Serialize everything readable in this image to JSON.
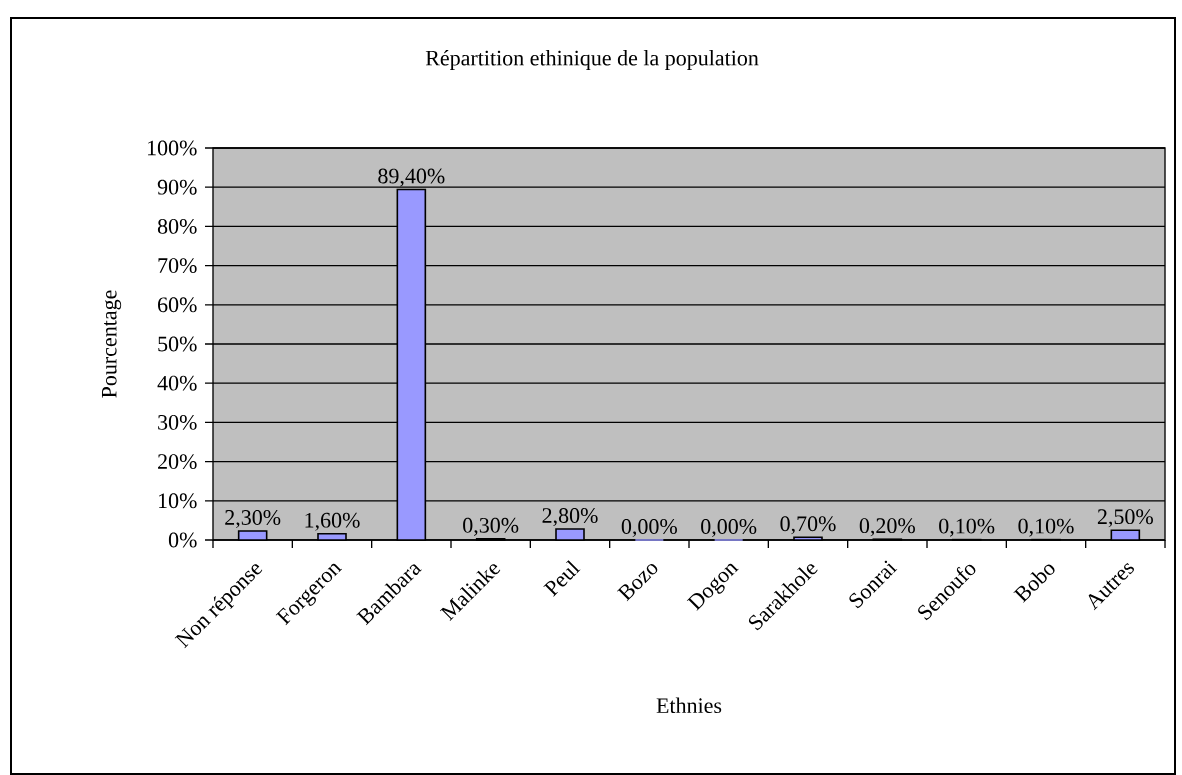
{
  "chart_data": {
    "type": "bar",
    "title": "Répartition ethinique de la population",
    "xlabel": "Ethnies",
    "ylabel": "Pourcentage",
    "categories": [
      "Non réponse",
      "Forgeron",
      "Bambara",
      "Malinke",
      "Peul",
      "Bozo",
      "Dogon",
      "Sarakhole",
      "Sonrai",
      "Senoufo",
      "Bobo",
      "Autres"
    ],
    "values": [
      2.3,
      1.6,
      89.4,
      0.3,
      2.8,
      0,
      0,
      0.7,
      0.2,
      0.1,
      0.1,
      2.5
    ],
    "value_labels": [
      "2,30%",
      "1,60%",
      "89,40%",
      "0,30%",
      "2,80%",
      "0,00%",
      "0,00%",
      "0,70%",
      "0,20%",
      "0,10%",
      "0,10%",
      "2,50%"
    ],
    "color": "#9999ff",
    "ylim": [
      0,
      100
    ],
    "yticks": [
      {
        "value": 0,
        "label": "0%"
      },
      {
        "value": 10,
        "label": "10%"
      },
      {
        "value": 20,
        "label": "20%"
      },
      {
        "value": 30,
        "label": "30%"
      },
      {
        "value": 40,
        "label": "40%"
      },
      {
        "value": 50,
        "label": "50%"
      },
      {
        "value": 60,
        "label": "60%"
      },
      {
        "value": 70,
        "label": "70%"
      },
      {
        "value": 80,
        "label": "80%"
      },
      {
        "value": 90,
        "label": "90%"
      },
      {
        "value": 100,
        "label": "100%"
      }
    ],
    "grid": "y"
  }
}
